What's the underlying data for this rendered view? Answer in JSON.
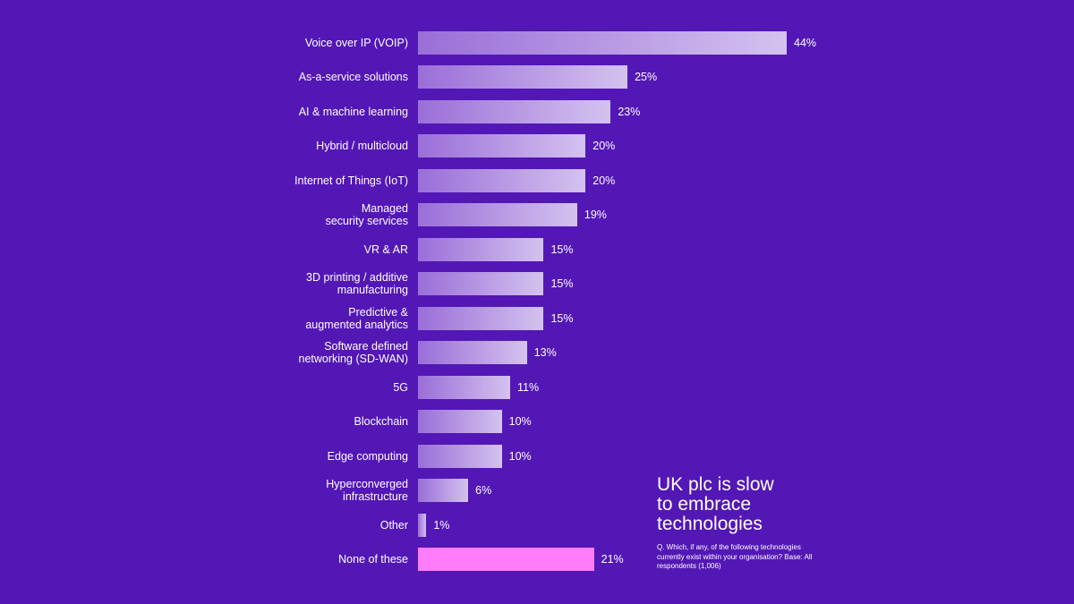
{
  "chart_data": {
    "type": "bar",
    "orientation": "horizontal",
    "title": "UK plc is slow\nto embrace\ntechnologies",
    "note": "Q. Which, if any, of the following technologies currently exist within your organisation? Base: All respondents (1,006)",
    "categories": [
      "Voice over IP (VOIP)",
      "As-a-service solutions",
      "AI & machine learning",
      "Hybrid / multicloud",
      "Internet of Things (IoT)",
      "Managed\nsecurity services",
      "VR & AR",
      "3D printing / additive\nmanufacturing",
      "Predictive &\naugmented analytics",
      "Software defined\nnetworking (SD-WAN)",
      "5G",
      "Blockchain",
      "Edge computing",
      "Hyperconverged\ninfrastructure",
      "Other",
      "None of these"
    ],
    "values": [
      44,
      25,
      23,
      20,
      20,
      19,
      15,
      15,
      15,
      13,
      11,
      10,
      10,
      6,
      1,
      21
    ],
    "value_labels": [
      "44%",
      "25%",
      "23%",
      "20%",
      "20%",
      "19%",
      "15%",
      "15%",
      "15%",
      "13%",
      "11%",
      "10%",
      "10%",
      "6%",
      "1%",
      "21%"
    ],
    "highlight": [
      false,
      false,
      false,
      false,
      false,
      false,
      false,
      false,
      false,
      false,
      false,
      false,
      false,
      false,
      false,
      true
    ],
    "xlim": [
      0,
      44
    ],
    "grid": false,
    "colors": {
      "background": "#5317b6",
      "bar_start": "#9a6ed8",
      "bar_end": "#d4c2ef",
      "highlight": "#ff7dfa",
      "text": "#ffffff"
    }
  }
}
